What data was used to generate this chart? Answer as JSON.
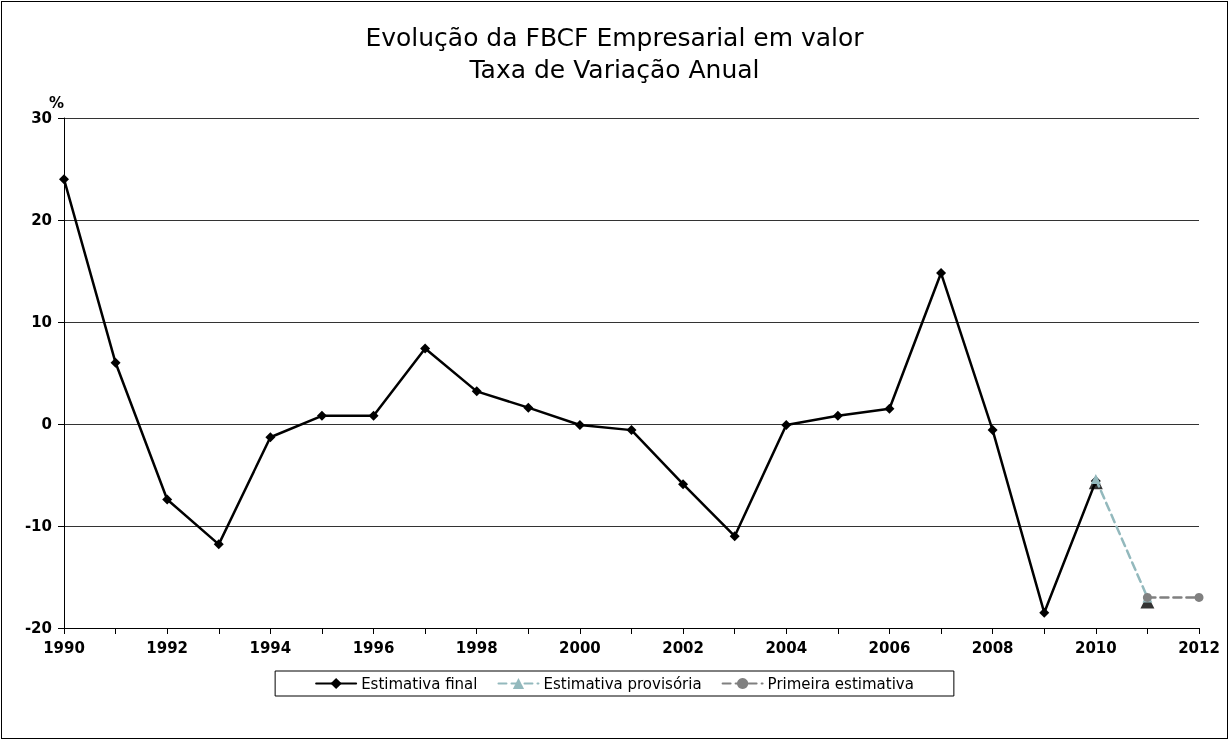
{
  "chart_data": {
    "type": "line",
    "title": "Evolução da FBCF Empresarial em valor\nTaxa de Variação Anual",
    "ylabel": "%",
    "xlim": [
      1990,
      2012
    ],
    "xticks": [
      1990,
      {
        "value": 1991,
        "label": null
      },
      1992,
      {
        "value": 1993,
        "label": null
      },
      1994,
      {
        "value": 1995,
        "label": null
      },
      1996,
      {
        "value": 1997,
        "label": null
      },
      1998,
      {
        "value": 1999,
        "label": null
      },
      2000,
      {
        "value": 2001,
        "label": null
      },
      2002,
      {
        "value": 2003,
        "label": null
      },
      2004,
      {
        "value": 2005,
        "label": null
      },
      2006,
      {
        "value": 2007,
        "label": null
      },
      2008,
      {
        "value": 2009,
        "label": null
      },
      2010,
      {
        "value": 2011,
        "label": null
      },
      2012
    ],
    "ylim": [
      -20,
      30
    ],
    "yticks": [
      -20,
      -10,
      0,
      10,
      20,
      30
    ],
    "grid": "y",
    "legend": "bottom",
    "series": [
      {
        "name": "Estimativa final",
        "type": "line",
        "color": "#000000",
        "marker": "diamond",
        "line_style": "solid",
        "x": [
          1990,
          1991,
          1992,
          1993,
          1994,
          1995,
          1996,
          1997,
          1998,
          1999,
          2000,
          2001,
          2002,
          2003,
          2004,
          2005,
          2006,
          2007,
          2008,
          2009,
          2010
        ],
        "values": [
          24.0,
          6.0,
          -7.4,
          -11.8,
          -1.3,
          0.8,
          0.8,
          7.4,
          3.2,
          1.6,
          -0.1,
          -0.6,
          -5.9,
          -11.0,
          -0.1,
          0.8,
          1.5,
          14.8,
          -0.6,
          -18.5,
          -5.6
        ]
      },
      {
        "type": "scatter",
        "color": "#000000",
        "marker": "triangle",
        "x": [
          2010,
          2011
        ],
        "values": [
          -5.7,
          -17.4
        ]
      },
      {
        "name": "Estimativa provisória",
        "type": "line",
        "color": "#93b9bd",
        "marker": "triangle",
        "line_style": "dashed",
        "x": [
          2010,
          2011
        ],
        "values": [
          -5.4,
          -17.0
        ]
      },
      {
        "name": "Primeira estimativa",
        "type": "line",
        "color": "#808080",
        "marker": "circle",
        "line_style": "dashed",
        "x": [
          2011,
          2012
        ],
        "values": [
          -17.0,
          -17.0
        ]
      }
    ]
  }
}
